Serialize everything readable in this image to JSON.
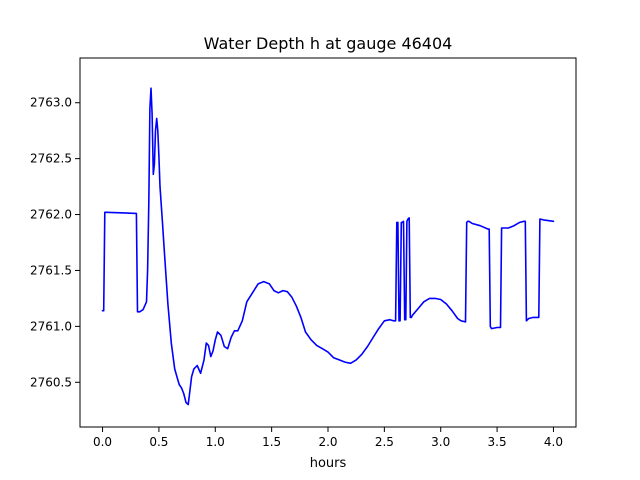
{
  "chart_data": {
    "type": "line",
    "title": "Water Depth h at gauge 46404",
    "xlabel": "hours",
    "ylabel": "",
    "xlim": [
      -0.2,
      4.2
    ],
    "ylim": [
      2760.1,
      2763.4
    ],
    "x_ticks": [
      0.0,
      0.5,
      1.0,
      1.5,
      2.0,
      2.5,
      3.0,
      3.5,
      4.0
    ],
    "x_tick_labels": [
      "0.0",
      "0.5",
      "1.0",
      "1.5",
      "2.0",
      "2.5",
      "3.0",
      "3.5",
      "4.0"
    ],
    "y_ticks": [
      2760.5,
      2761.0,
      2761.5,
      2762.0,
      2762.5,
      2763.0
    ],
    "y_tick_labels": [
      "2760.5",
      "2761.0",
      "2761.5",
      "2762.0",
      "2762.5",
      "2763.0"
    ],
    "grid": false,
    "series": [
      {
        "color": "#0000ff",
        "x": [
          0.0,
          0.01,
          0.02,
          0.03,
          0.3,
          0.31,
          0.33,
          0.36,
          0.39,
          0.4,
          0.41,
          0.42,
          0.43,
          0.44,
          0.45,
          0.46,
          0.47,
          0.48,
          0.49,
          0.5,
          0.51,
          0.53,
          0.55,
          0.58,
          0.61,
          0.64,
          0.66,
          0.68,
          0.7,
          0.72,
          0.74,
          0.76,
          0.77,
          0.79,
          0.81,
          0.84,
          0.87,
          0.9,
          0.92,
          0.94,
          0.96,
          0.98,
          1.0,
          1.02,
          1.05,
          1.08,
          1.11,
          1.14,
          1.17,
          1.2,
          1.24,
          1.28,
          1.33,
          1.38,
          1.43,
          1.48,
          1.52,
          1.56,
          1.6,
          1.64,
          1.68,
          1.72,
          1.76,
          1.8,
          1.85,
          1.9,
          1.95,
          2.0,
          2.05,
          2.1,
          2.15,
          2.2,
          2.25,
          2.3,
          2.35,
          2.4,
          2.45,
          2.5,
          2.55,
          2.58,
          2.6,
          2.61,
          2.62,
          2.63,
          2.64,
          2.65,
          2.66,
          2.67,
          2.68,
          2.69,
          2.7,
          2.71,
          2.72,
          2.73,
          2.74,
          2.75,
          2.8,
          2.85,
          2.9,
          2.95,
          3.0,
          3.05,
          3.1,
          3.15,
          3.18,
          3.22,
          3.23,
          3.24,
          3.25,
          3.28,
          3.35,
          3.42,
          3.43,
          3.44,
          3.45,
          3.5,
          3.53,
          3.54,
          3.55,
          3.6,
          3.65,
          3.7,
          3.74,
          3.75,
          3.76,
          3.78,
          3.82,
          3.86,
          3.87,
          3.88,
          3.92,
          4.0
        ],
        "y": [
          2761.14,
          2761.14,
          2762.02,
          2762.02,
          2762.01,
          2761.13,
          2761.13,
          2761.15,
          2761.22,
          2761.5,
          2762.1,
          2762.95,
          2763.13,
          2762.9,
          2762.36,
          2762.45,
          2762.75,
          2762.86,
          2762.75,
          2762.52,
          2762.25,
          2761.95,
          2761.65,
          2761.2,
          2760.85,
          2760.62,
          2760.55,
          2760.48,
          2760.45,
          2760.4,
          2760.32,
          2760.3,
          2760.38,
          2760.55,
          2760.62,
          2760.65,
          2760.58,
          2760.7,
          2760.85,
          2760.83,
          2760.73,
          2760.78,
          2760.88,
          2760.95,
          2760.92,
          2760.82,
          2760.8,
          2760.9,
          2760.96,
          2760.96,
          2761.05,
          2761.22,
          2761.3,
          2761.38,
          2761.4,
          2761.38,
          2761.32,
          2761.3,
          2761.32,
          2761.31,
          2761.26,
          2761.18,
          2761.08,
          2760.95,
          2760.88,
          2760.83,
          2760.8,
          2760.77,
          2760.72,
          2760.7,
          2760.68,
          2760.67,
          2760.7,
          2760.75,
          2760.82,
          2760.9,
          2760.98,
          2761.05,
          2761.06,
          2761.05,
          2761.05,
          2761.93,
          2761.93,
          2761.05,
          2761.05,
          2761.93,
          2761.93,
          2761.94,
          2761.06,
          2761.06,
          2761.94,
          2761.96,
          2761.97,
          2761.08,
          2761.08,
          2761.1,
          2761.16,
          2761.22,
          2761.25,
          2761.25,
          2761.24,
          2761.2,
          2761.14,
          2761.07,
          2761.05,
          2761.04,
          2761.93,
          2761.94,
          2761.94,
          2761.92,
          2761.9,
          2761.87,
          2761.87,
          2761.0,
          2760.98,
          2760.99,
          2760.99,
          2761.88,
          2761.88,
          2761.88,
          2761.9,
          2761.93,
          2761.94,
          2761.94,
          2761.05,
          2761.07,
          2761.08,
          2761.08,
          2761.08,
          2761.96,
          2761.95,
          2761.94
        ]
      }
    ]
  }
}
